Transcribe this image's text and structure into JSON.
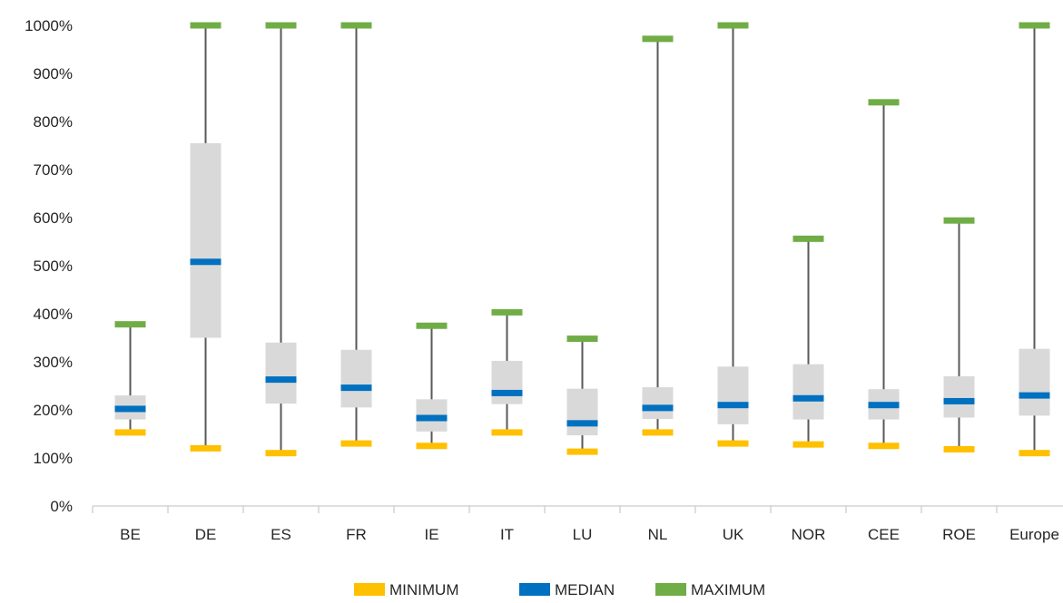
{
  "chart_data": {
    "type": "box",
    "title": "",
    "xlabel": "",
    "ylabel": "",
    "categories": [
      "BE",
      "DE",
      "ES",
      "FR",
      "IE",
      "IT",
      "LU",
      "NL",
      "UK",
      "NOR",
      "CEE",
      "ROE",
      "Europe"
    ],
    "minimum": [
      153,
      120,
      110,
      130,
      125,
      153,
      113,
      153,
      130,
      128,
      125,
      118,
      110
    ],
    "q1": [
      180,
      350,
      213,
      205,
      155,
      212,
      147,
      181,
      170,
      180,
      180,
      184,
      188
    ],
    "median": [
      202,
      508,
      263,
      246,
      183,
      235,
      172,
      204,
      210,
      224,
      210,
      218,
      230
    ],
    "q3": [
      230,
      755,
      340,
      325,
      222,
      302,
      244,
      247,
      290,
      295,
      243,
      270,
      327
    ],
    "maximum": [
      378,
      1000,
      1000,
      1000,
      375,
      403,
      348,
      972,
      1000,
      556,
      840,
      594,
      1000
    ],
    "y_ticks": [
      "0%",
      "100%",
      "200%",
      "300%",
      "400%",
      "500%",
      "600%",
      "700%",
      "800%",
      "900%",
      "1000%"
    ],
    "ylim": [
      0,
      1000
    ],
    "grid": false,
    "legend_position": "bottom",
    "legend": [
      {
        "key": "minimum",
        "label": "MINIMUM",
        "color": "#FFC000"
      },
      {
        "key": "median",
        "label": "MEDIAN",
        "color": "#0070C0"
      },
      {
        "key": "maximum",
        "label": "MAXIMUM",
        "color": "#70AD47"
      }
    ],
    "colors": {
      "box": "#D9D9D9",
      "whisker": "#595959",
      "axis": "#BFBFBF"
    }
  }
}
